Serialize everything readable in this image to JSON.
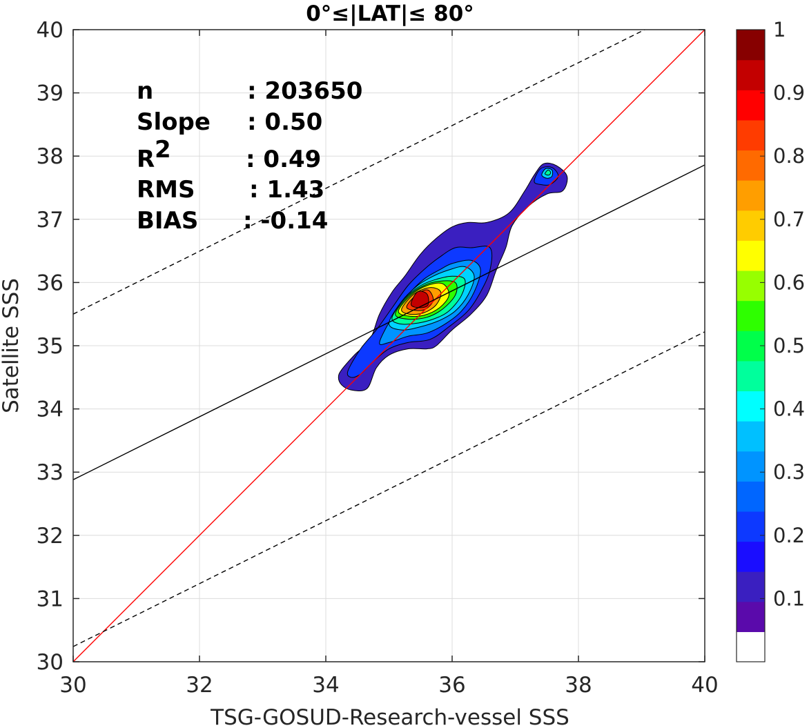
{
  "chart_data": {
    "type": "density_contour",
    "title": "0°≤|LAT|≤ 80°",
    "xlabel": "TSG-GOSUD-Research-vessel SSS",
    "ylabel": "Satellite SSS",
    "xlim": [
      30,
      40
    ],
    "ylim": [
      30,
      40
    ],
    "xticks": [
      "30",
      "32",
      "34",
      "36",
      "38",
      "40"
    ],
    "yticks": [
      "30",
      "31",
      "32",
      "33",
      "34",
      "35",
      "36",
      "37",
      "38",
      "39",
      "40"
    ],
    "grid": true,
    "stats": [
      {
        "label": "n",
        "value": ": 203650"
      },
      {
        "label": "Slope",
        "value": ": 0.50"
      },
      {
        "label": "R",
        "sup": "2",
        "value": ": 0.49"
      },
      {
        "label": "RMS",
        "value": ": 1.43"
      },
      {
        "label": "BIAS",
        "value": ": -0.14"
      }
    ],
    "lines": [
      {
        "id": "one-to-one",
        "color": "#ff0000",
        "style": "solid",
        "points": [
          [
            30,
            30
          ],
          [
            40,
            40
          ]
        ]
      },
      {
        "id": "regression",
        "color": "#000000",
        "style": "solid",
        "points": [
          [
            30,
            32.88
          ],
          [
            40,
            37.86
          ]
        ]
      },
      {
        "id": "upper-bound",
        "color": "#000000",
        "style": "dashed",
        "points": [
          [
            30,
            35.5
          ],
          [
            39.05,
            40
          ]
        ]
      },
      {
        "id": "lower-bound",
        "color": "#000000",
        "style": "dashed",
        "points": [
          [
            30,
            30.24
          ],
          [
            40,
            35.22
          ]
        ]
      }
    ],
    "density_peak": {
      "x": 35.55,
      "y": 35.75
    },
    "density_secondary_peak": {
      "x": 37.5,
      "y": 37.72
    },
    "contours": [
      {
        "level": 0.05,
        "color": "#3a1fc0",
        "points": [
          [
            34.2,
            34.5
          ],
          [
            34.25,
            34.62
          ],
          [
            34.45,
            34.85
          ],
          [
            34.7,
            35.1
          ],
          [
            34.85,
            35.5
          ],
          [
            35.05,
            35.85
          ],
          [
            35.25,
            36.1
          ],
          [
            35.5,
            36.45
          ],
          [
            35.75,
            36.7
          ],
          [
            36.0,
            36.88
          ],
          [
            36.25,
            36.95
          ],
          [
            36.55,
            36.95
          ],
          [
            36.9,
            37.1
          ],
          [
            37.15,
            37.45
          ],
          [
            37.3,
            37.7
          ],
          [
            37.45,
            37.88
          ],
          [
            37.65,
            37.85
          ],
          [
            37.82,
            37.68
          ],
          [
            37.75,
            37.45
          ],
          [
            37.5,
            37.4
          ],
          [
            37.2,
            37.2
          ],
          [
            36.95,
            36.9
          ],
          [
            36.85,
            36.55
          ],
          [
            36.7,
            36.2
          ],
          [
            36.55,
            35.8
          ],
          [
            36.3,
            35.5
          ],
          [
            36.0,
            35.25
          ],
          [
            35.75,
            35.0
          ],
          [
            35.6,
            34.95
          ],
          [
            35.3,
            34.95
          ],
          [
            35.0,
            34.85
          ],
          [
            34.8,
            34.65
          ],
          [
            34.65,
            34.32
          ],
          [
            34.4,
            34.3
          ],
          [
            34.25,
            34.38
          ]
        ]
      },
      {
        "level": 0.15,
        "color": "#0d39ff",
        "points": [
          [
            34.35,
            34.6
          ],
          [
            34.55,
            34.95
          ],
          [
            34.8,
            35.25
          ],
          [
            35.05,
            35.6
          ],
          [
            35.3,
            35.95
          ],
          [
            35.55,
            36.2
          ],
          [
            35.8,
            36.4
          ],
          [
            36.05,
            36.55
          ],
          [
            36.3,
            36.55
          ],
          [
            36.6,
            36.55
          ],
          [
            36.6,
            36.2
          ],
          [
            36.45,
            35.85
          ],
          [
            36.25,
            35.55
          ],
          [
            35.95,
            35.3
          ],
          [
            35.65,
            35.1
          ],
          [
            35.3,
            35.05
          ],
          [
            35.0,
            34.95
          ],
          [
            34.75,
            34.75
          ],
          [
            34.55,
            34.55
          ],
          [
            34.4,
            34.5
          ]
        ]
      },
      {
        "level": 0.25,
        "color": "#0094ff",
        "points": [
          [
            34.85,
            35.05
          ],
          [
            35.05,
            35.45
          ],
          [
            35.3,
            35.8
          ],
          [
            35.55,
            36.05
          ],
          [
            35.8,
            36.2
          ],
          [
            36.0,
            36.3
          ],
          [
            36.3,
            36.35
          ],
          [
            36.45,
            36.2
          ],
          [
            36.35,
            35.85
          ],
          [
            36.15,
            35.55
          ],
          [
            35.9,
            35.35
          ],
          [
            35.6,
            35.2
          ],
          [
            35.3,
            35.15
          ],
          [
            35.0,
            35.05
          ]
        ]
      },
      {
        "level": 0.35,
        "color": "#00d3ff",
        "points": [
          [
            35.0,
            35.35
          ],
          [
            35.2,
            35.7
          ],
          [
            35.45,
            35.95
          ],
          [
            35.7,
            36.1
          ],
          [
            35.95,
            36.2
          ],
          [
            36.2,
            36.25
          ],
          [
            36.35,
            36.1
          ],
          [
            36.25,
            35.8
          ],
          [
            36.05,
            35.55
          ],
          [
            35.8,
            35.4
          ],
          [
            35.5,
            35.3
          ],
          [
            35.2,
            35.25
          ]
        ]
      },
      {
        "level": 0.45,
        "color": "#00ff9c",
        "points": [
          [
            35.05,
            35.45
          ],
          [
            35.25,
            35.75
          ],
          [
            35.5,
            35.95
          ],
          [
            35.75,
            36.05
          ],
          [
            36.0,
            36.1
          ],
          [
            36.2,
            36.05
          ],
          [
            36.15,
            35.8
          ],
          [
            35.95,
            35.55
          ],
          [
            35.7,
            35.42
          ],
          [
            35.4,
            35.35
          ],
          [
            35.15,
            35.35
          ]
        ]
      },
      {
        "level": 0.55,
        "color": "#2eff00",
        "points": [
          [
            35.1,
            35.5
          ],
          [
            35.3,
            35.78
          ],
          [
            35.55,
            35.95
          ],
          [
            35.8,
            36.02
          ],
          [
            36.05,
            36.0
          ],
          [
            36.05,
            35.8
          ],
          [
            35.85,
            35.58
          ],
          [
            35.6,
            35.45
          ],
          [
            35.3,
            35.42
          ]
        ]
      },
      {
        "level": 0.65,
        "color": "#ffff00",
        "points": [
          [
            35.15,
            35.55
          ],
          [
            35.35,
            35.8
          ],
          [
            35.6,
            35.95
          ],
          [
            35.85,
            35.98
          ],
          [
            35.95,
            35.8
          ],
          [
            35.8,
            35.6
          ],
          [
            35.55,
            35.48
          ],
          [
            35.3,
            35.47
          ]
        ]
      },
      {
        "level": 0.75,
        "color": "#ff9e00",
        "points": [
          [
            35.2,
            35.58
          ],
          [
            35.4,
            35.82
          ],
          [
            35.65,
            35.92
          ],
          [
            35.82,
            35.85
          ],
          [
            35.75,
            35.65
          ],
          [
            35.55,
            35.52
          ],
          [
            35.32,
            35.5
          ]
        ]
      },
      {
        "level": 0.85,
        "color": "#ff3c00",
        "points": [
          [
            35.28,
            35.62
          ],
          [
            35.45,
            35.82
          ],
          [
            35.62,
            35.88
          ],
          [
            35.7,
            35.72
          ],
          [
            35.58,
            35.58
          ],
          [
            35.4,
            35.56
          ]
        ]
      },
      {
        "level": 0.95,
        "color": "#c30000",
        "points": [
          [
            35.35,
            35.65
          ],
          [
            35.45,
            35.85
          ],
          [
            35.6,
            35.82
          ],
          [
            35.62,
            35.65
          ],
          [
            35.5,
            35.6
          ]
        ]
      },
      {
        "level": 0.15,
        "color": "#0d39ff",
        "points": [
          [
            37.3,
            37.6
          ],
          [
            37.4,
            37.8
          ],
          [
            37.58,
            37.82
          ],
          [
            37.68,
            37.68
          ],
          [
            37.55,
            37.55
          ],
          [
            37.4,
            37.55
          ]
        ]
      },
      {
        "level": 0.35,
        "color": "#00d3ff",
        "points": [
          [
            37.42,
            37.7
          ],
          [
            37.48,
            37.8
          ],
          [
            37.58,
            37.78
          ],
          [
            37.58,
            37.68
          ],
          [
            37.5,
            37.65
          ]
        ]
      },
      {
        "level": 0.45,
        "color": "#00ff9c",
        "points": [
          [
            37.47,
            37.72
          ],
          [
            37.52,
            37.78
          ],
          [
            37.56,
            37.74
          ],
          [
            37.53,
            37.7
          ]
        ]
      }
    ],
    "colorbar": {
      "ticks": [
        "1",
        "0.9",
        "0.8",
        "0.7",
        "0.6",
        "0.5",
        "0.4",
        "0.3",
        "0.2",
        "0.1"
      ],
      "tick_values": [
        1,
        0.9,
        0.8,
        0.7,
        0.6,
        0.5,
        0.4,
        0.3,
        0.2,
        0.1
      ],
      "range": [
        0,
        1
      ],
      "bands": [
        "#ffffff",
        "#5a0aab",
        "#3a1fc0",
        "#1a0dff",
        "#0d39ff",
        "#0066ff",
        "#0094ff",
        "#00c0ff",
        "#00ffff",
        "#00ff9c",
        "#00ff4a",
        "#2eff00",
        "#97ff00",
        "#ffff00",
        "#ffcc00",
        "#ff9e00",
        "#ff6a00",
        "#ff3c00",
        "#ff0000",
        "#c30000",
        "#870000"
      ]
    }
  }
}
